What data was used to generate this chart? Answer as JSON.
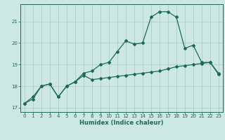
{
  "title": "",
  "xlabel": "Humidex (Indice chaleur)",
  "bg_color": "#cce8e0",
  "grid_color": "#aacfc8",
  "line_color": "#1a6b5a",
  "ylim": [
    16.8,
    21.8
  ],
  "xlim": [
    -0.5,
    23.5
  ],
  "yticks": [
    17,
    18,
    19,
    20,
    21
  ],
  "xticks": [
    0,
    1,
    2,
    3,
    4,
    5,
    6,
    7,
    8,
    9,
    10,
    11,
    12,
    13,
    14,
    15,
    16,
    17,
    18,
    19,
    20,
    21,
    22,
    23
  ],
  "line1": [
    17.2,
    17.4,
    18.0,
    18.1,
    17.5,
    18.0,
    18.2,
    18.6,
    18.7,
    19.0,
    19.1,
    19.6,
    20.1,
    19.95,
    20.0,
    21.2,
    21.45,
    21.45,
    21.2,
    19.75,
    19.9,
    19.1,
    19.1,
    18.55
  ],
  "line2": [
    17.2,
    17.5,
    18.0,
    18.1,
    17.5,
    18.0,
    18.2,
    18.5,
    18.3,
    18.35,
    18.4,
    18.45,
    18.5,
    18.55,
    18.6,
    18.65,
    18.7,
    18.8,
    18.9,
    18.95,
    19.0,
    19.05,
    19.1,
    18.6
  ],
  "x": [
    0,
    1,
    2,
    3,
    4,
    5,
    6,
    7,
    8,
    9,
    10,
    11,
    12,
    13,
    14,
    15,
    16,
    17,
    18,
    19,
    20,
    21,
    22,
    23
  ]
}
